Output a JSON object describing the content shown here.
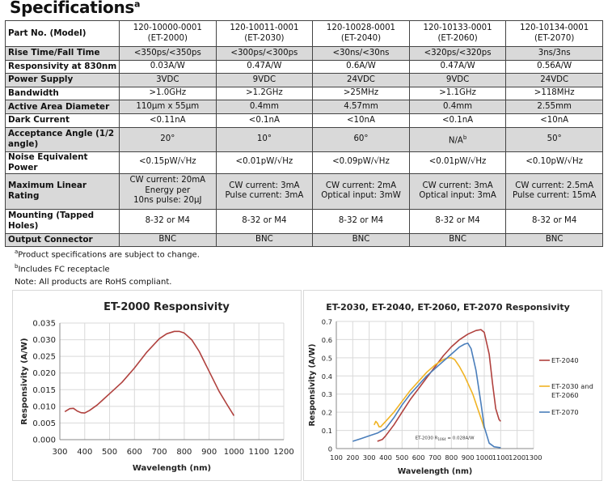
{
  "heading": {
    "text": "Specifications",
    "sup": "a"
  },
  "table": {
    "header": {
      "label": "Part No. (Model)",
      "models": [
        {
          "part": "120-10000-0001",
          "model": "(ET-2000)"
        },
        {
          "part": "120-10011-0001",
          "model": "(ET-2030)"
        },
        {
          "part": "120-10028-0001",
          "model": "(ET-2040)"
        },
        {
          "part": "120-10133-0001",
          "model": "(ET-2060)"
        },
        {
          "part": "120-10134-0001",
          "model": "(ET-2070)"
        }
      ]
    },
    "rows": [
      {
        "label": "Rise Time/Fall Time",
        "values": [
          "<350ps/<350ps",
          "<300ps/<300ps",
          "<30ns/<30ns",
          "<320ps/<320ps",
          "3ns/3ns"
        ]
      },
      {
        "label": "Responsivity at 830nm",
        "values": [
          "0.03A/W",
          "0.47A/W",
          "0.6A/W",
          "0.47A/W",
          "0.56A/W"
        ]
      },
      {
        "label": "Power Supply",
        "values": [
          "3VDC",
          "9VDC",
          "24VDC",
          "9VDC",
          "24VDC"
        ]
      },
      {
        "label": "Bandwidth",
        "values": [
          ">1.0GHz",
          ">1.2GHz",
          ">25MHz",
          ">1.1GHz",
          ">118MHz"
        ]
      },
      {
        "label": "Active Area Diameter",
        "values": [
          "110μm x 55μm",
          "0.4mm",
          "4.57mm",
          "0.4mm",
          "2.55mm"
        ]
      },
      {
        "label": "Dark Current",
        "values": [
          "<0.11nA",
          "<0.1nA",
          "<10nA",
          "<0.1nA",
          "<10nA"
        ]
      },
      {
        "label": "Acceptance Angle (1/2 angle)",
        "values": [
          "20°",
          "10°",
          "60°",
          "N/A",
          "50°"
        ],
        "sup4": "b"
      },
      {
        "label": "Noise Equivalent Power",
        "values": [
          "<0.15pW/√Hz",
          "<0.01pW/√Hz",
          "<0.09pW/√Hz",
          "<0.01pW/√Hz",
          "<0.10pW/√Hz"
        ]
      },
      {
        "label": "Maximum Linear Rating",
        "lines": [
          [
            "CW current: 20mA",
            "Energy per",
            "10ns pulse: 20μJ"
          ],
          [
            "CW current: 3mA",
            "Pulse current: 3mA"
          ],
          [
            "CW current: 2mA",
            "Optical input: 3mW"
          ],
          [
            "CW current: 3mA",
            "Optical input: 3mA"
          ],
          [
            "CW current: 2.5mA",
            "Pulse current: 15mA"
          ]
        ]
      },
      {
        "label": "Mounting (Tapped Holes)",
        "values": [
          "8-32 or M4",
          "8-32 or M4",
          "8-32 or M4",
          "8-32 or M4",
          "8-32 or M4"
        ]
      },
      {
        "label": "Output Connector",
        "values": [
          "BNC",
          "BNC",
          "BNC",
          "BNC",
          "BNC"
        ]
      }
    ]
  },
  "notes": [
    {
      "sup": "a",
      "text": "Product specifications are subject to change."
    },
    {
      "sup": "b",
      "text": "Includes FC receptacle"
    },
    {
      "sup": "",
      "text": "Note: All products are RoHS compliant."
    }
  ],
  "chart_data": [
    {
      "type": "line",
      "title": "ET-2000 Responsivity",
      "xlabel": "Wavelength (nm)",
      "ylabel": "Responsivity (A/W)",
      "xlim": [
        300,
        1200
      ],
      "ylim": [
        0,
        0.035
      ],
      "xticks": [
        300,
        400,
        500,
        600,
        700,
        800,
        900,
        1000,
        1100,
        1200
      ],
      "yticks": [
        "0.000",
        "0.005",
        "0.010",
        "0.015",
        "0.020",
        "0.025",
        "0.030",
        "0.035"
      ],
      "grid": true,
      "series": [
        {
          "color": "#b0413e",
          "x": [
            320,
            340,
            355,
            370,
            385,
            400,
            420,
            450,
            500,
            550,
            600,
            650,
            700,
            730,
            760,
            780,
            800,
            830,
            860,
            900,
            940,
            970,
            1000
          ],
          "y": [
            0.0084,
            0.0093,
            0.0094,
            0.0086,
            0.0081,
            0.008,
            0.0088,
            0.0104,
            0.0138,
            0.0172,
            0.0215,
            0.0263,
            0.0303,
            0.0318,
            0.0325,
            0.0325,
            0.032,
            0.03,
            0.0265,
            0.0205,
            0.0145,
            0.0108,
            0.0072
          ]
        }
      ]
    },
    {
      "type": "line",
      "title": "ET-2030, ET-2040, ET-2060, ET-2070 Responsivity",
      "xlabel": "Wavelength (nm)",
      "ylabel": "Responsivity (A/W)",
      "xlim": [
        100,
        1300
      ],
      "ylim": [
        0,
        0.7
      ],
      "xticks": [
        100,
        200,
        300,
        400,
        500,
        600,
        700,
        800,
        900,
        1000,
        1100,
        1200,
        1300
      ],
      "yticks": [
        "0",
        "0.1",
        "0.2",
        "0.3",
        "0.4",
        "0.5",
        "0.6",
        "0.7"
      ],
      "grid": true,
      "legend_position": "right",
      "annotation": {
        "text": "ET-2030 R",
        "sub": "1064",
        "rest": " = 0.028A/W"
      },
      "series": [
        {
          "name": "ET-2040",
          "color": "#b0413e",
          "x": [
            350,
            380,
            400,
            450,
            500,
            550,
            600,
            650,
            700,
            750,
            800,
            850,
            900,
            950,
            980,
            1000,
            1030,
            1050,
            1070,
            1090,
            1100
          ],
          "y": [
            0.04,
            0.05,
            0.07,
            0.13,
            0.2,
            0.27,
            0.33,
            0.39,
            0.45,
            0.51,
            0.56,
            0.6,
            0.63,
            0.65,
            0.655,
            0.64,
            0.52,
            0.36,
            0.22,
            0.16,
            0.15
          ]
        },
        {
          "name": "ET-2030 and ET-2060",
          "color": "#f0b323",
          "x": [
            330,
            340,
            350,
            360,
            370,
            380,
            400,
            450,
            500,
            550,
            600,
            650,
            700,
            750,
            780,
            800,
            820,
            850,
            880,
            900,
            930,
            960,
            990,
            1000
          ],
          "y": [
            0.13,
            0.15,
            0.14,
            0.12,
            0.12,
            0.13,
            0.15,
            0.2,
            0.26,
            0.32,
            0.37,
            0.42,
            0.46,
            0.49,
            0.5,
            0.5,
            0.49,
            0.45,
            0.4,
            0.36,
            0.3,
            0.22,
            0.14,
            0.11
          ]
        },
        {
          "name": "ET-2070",
          "color": "#4a7ebb",
          "x": [
            200,
            250,
            300,
            350,
            400,
            450,
            500,
            550,
            600,
            650,
            700,
            750,
            800,
            850,
            880,
            900,
            920,
            950,
            980,
            1000,
            1030,
            1060,
            1100
          ],
          "y": [
            0.04,
            0.055,
            0.07,
            0.085,
            0.11,
            0.17,
            0.24,
            0.3,
            0.35,
            0.4,
            0.44,
            0.48,
            0.52,
            0.56,
            0.575,
            0.58,
            0.55,
            0.43,
            0.25,
            0.12,
            0.03,
            0.01,
            0.005
          ]
        }
      ]
    }
  ]
}
